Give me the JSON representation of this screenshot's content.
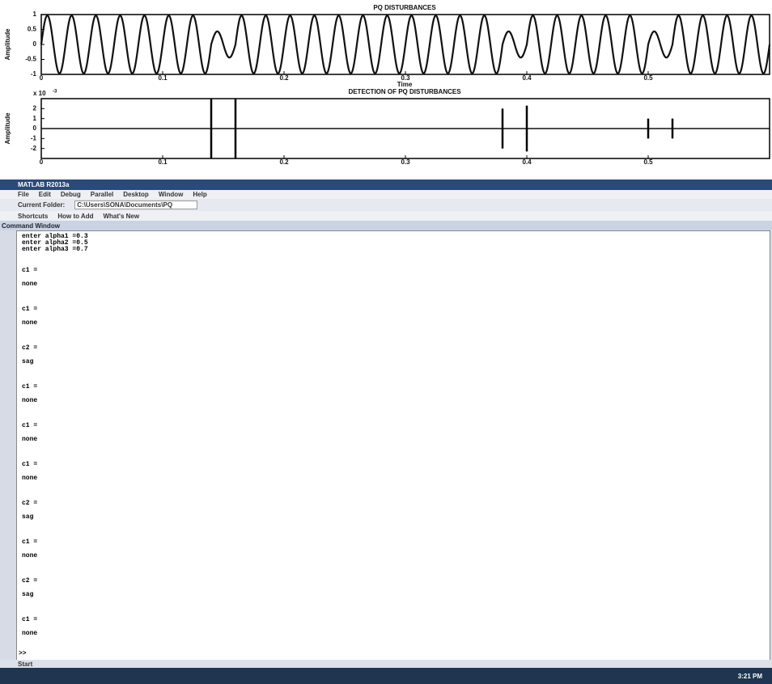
{
  "chart_data": [
    {
      "type": "line",
      "title": "PQ DISTURBANCES",
      "x_label": "Time",
      "y_label": "Amplitude",
      "xlim": [
        0,
        0.6
      ],
      "xticks": [
        0,
        0.1,
        0.2,
        0.3,
        0.4,
        0.5
      ],
      "ylim": [
        -1,
        1
      ],
      "yticks": [
        1,
        0.5,
        0,
        -0.5,
        -1
      ]
    },
    {
      "type": "stem",
      "title": "DETECTION OF PQ DISTURBANCES",
      "y_label": "Amplitude",
      "y_multiplier": "x 10",
      "y_exponent": "-3",
      "xlim": [
        0,
        0.6
      ],
      "xticks": [
        0,
        0.1,
        0.2,
        0.3,
        0.4,
        0.5
      ],
      "ylim": [
        -3,
        3
      ],
      "yticks": [
        2,
        1,
        0,
        -1,
        -2
      ],
      "x": [
        0.14,
        0.16,
        0.38,
        0.4,
        0.5,
        0.52
      ],
      "values": [
        3,
        3,
        2,
        2.3,
        1,
        1
      ]
    }
  ],
  "window": {
    "title": "MATLAB R2013a",
    "menu": [
      "File",
      "Edit",
      "Debug",
      "Parallel",
      "Desktop",
      "Window",
      "Help"
    ],
    "current_folder_label": "Current Folder:",
    "current_folder": "C:\\Users\\SONA\\Documents\\PQ",
    "shortcuts": [
      "Shortcuts",
      "How to Add",
      "What's New"
    ],
    "panel_title": "Command Window",
    "inputs": [
      "enter alpha1 =0.3",
      "enter alpha2 =0.5",
      "enter alpha3 =0.7"
    ],
    "outputs": [
      {
        "name": "c1 =",
        "value": "none"
      },
      {
        "name": "c1 =",
        "value": "none"
      },
      {
        "name": "c2 =",
        "value": "sag"
      },
      {
        "name": "c1 =",
        "value": "none"
      },
      {
        "name": "c1 =",
        "value": "none"
      },
      {
        "name": "c1 =",
        "value": "none"
      },
      {
        "name": "c2 =",
        "value": "sag"
      },
      {
        "name": "c1 =",
        "value": "none"
      },
      {
        "name": "c2 =",
        "value": "sag"
      },
      {
        "name": "c1 =",
        "value": "none"
      }
    ],
    "prompt": ">>",
    "start": "Start",
    "clock": "3:21 PM"
  }
}
